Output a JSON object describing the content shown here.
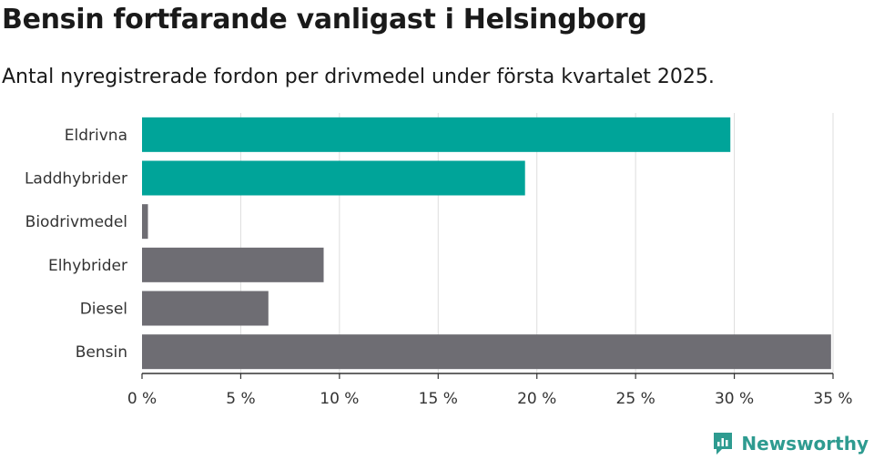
{
  "title": "Bensin fortfarande vanligast i Helsingborg",
  "subtitle": "Antal nyregistrerade fordon per drivmedel under första kvartalet 2025.",
  "brand": {
    "name": "Newsworthy",
    "logo_icon": "newsworthy-chart-icon"
  },
  "colors": {
    "highlight": "#00a499",
    "default": "#6e6d73",
    "grid": "#dddddd",
    "axis": "#333333"
  },
  "chart_data": {
    "type": "bar",
    "orientation": "horizontal",
    "categories": [
      "Eldrivna",
      "Laddhybrider",
      "Biodrivmedel",
      "Elhybrider",
      "Diesel",
      "Bensin"
    ],
    "values": [
      29.8,
      19.4,
      0.3,
      9.2,
      6.4,
      34.9
    ],
    "highlighted": [
      true,
      true,
      false,
      false,
      false,
      false
    ],
    "xlim": [
      0,
      35
    ],
    "xticks": [
      0,
      5,
      10,
      15,
      20,
      25,
      30,
      35
    ],
    "xtick_labels": [
      "0 %",
      "5 %",
      "10 %",
      "15 %",
      "20 %",
      "25 %",
      "30 %",
      "35 %"
    ],
    "xlabel": "",
    "ylabel": "",
    "grid": true,
    "legend": "none"
  }
}
